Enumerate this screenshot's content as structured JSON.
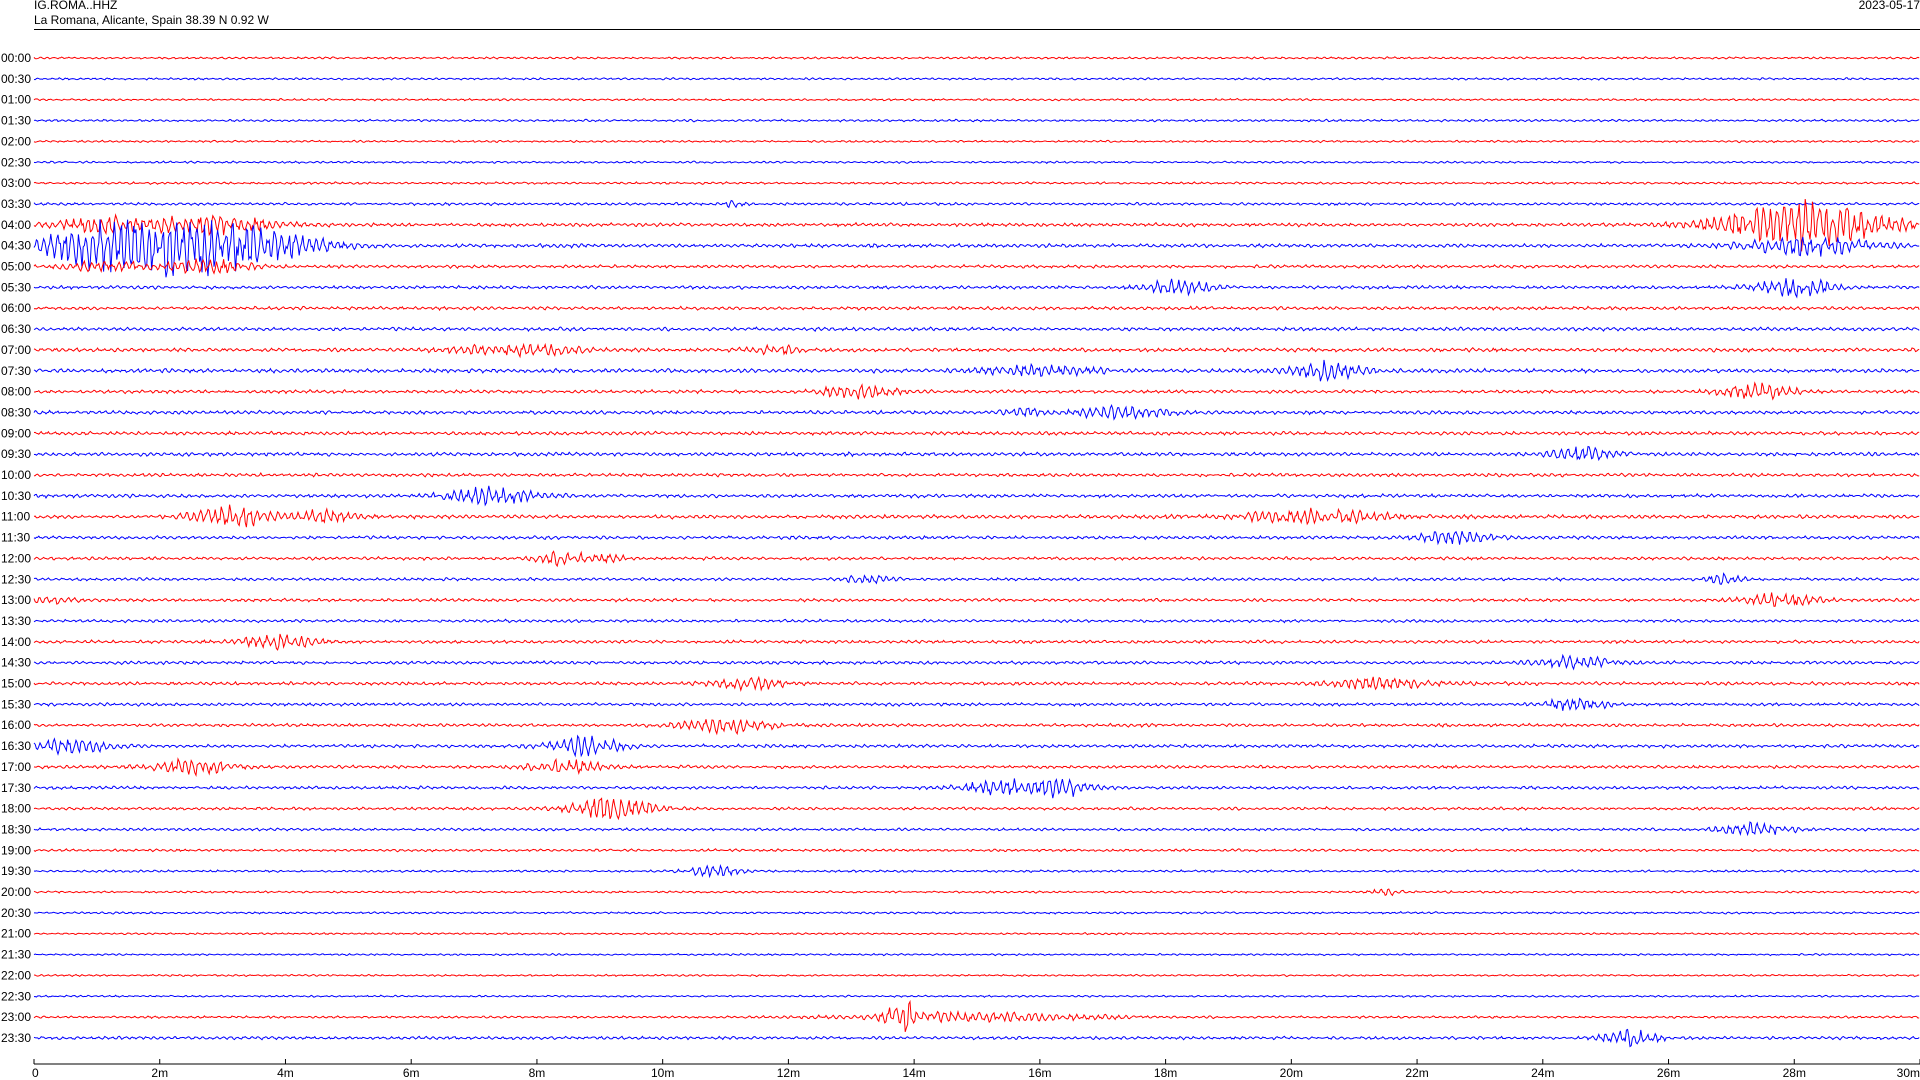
{
  "header": {
    "station": "IG.ROMA..HHZ",
    "location": "La Romana, Alicante, Spain  38.39 N 0.92 W",
    "date": "2023-05-17"
  },
  "chart_data": {
    "type": "line",
    "title": "",
    "xlabel": "",
    "ylabel": "",
    "x_range_minutes": [
      0,
      30
    ],
    "x_tick_labels": [
      "0",
      "2m",
      "4m",
      "6m",
      "8m",
      "10m",
      "12m",
      "14m",
      "16m",
      "18m",
      "20m",
      "22m",
      "24m",
      "26m",
      "28m",
      "30m"
    ],
    "row_labels": [
      "00:00",
      "00:30",
      "01:00",
      "01:30",
      "02:00",
      "02:30",
      "03:00",
      "03:30",
      "04:00",
      "04:30",
      "05:00",
      "05:30",
      "06:00",
      "06:30",
      "07:00",
      "07:30",
      "08:00",
      "08:30",
      "09:00",
      "09:30",
      "10:00",
      "10:30",
      "11:00",
      "11:30",
      "12:00",
      "12:30",
      "13:00",
      "13:30",
      "14:00",
      "14:30",
      "15:00",
      "15:30",
      "16:00",
      "16:30",
      "17:00",
      "17:30",
      "18:00",
      "18:30",
      "19:00",
      "19:30",
      "20:00",
      "20:30",
      "21:00",
      "21:30",
      "22:00",
      "22:30",
      "23:00",
      "23:30"
    ],
    "trace_colors": [
      "#ff0000",
      "#0000ff"
    ],
    "grid": false,
    "legend": "none",
    "noise_amplitude": [
      1.0,
      1.0,
      1.0,
      1.1,
      1.0,
      1.0,
      1.1,
      1.3,
      1.7,
      1.8,
      1.5,
      1.6,
      1.6,
      1.7,
      1.8,
      1.9,
      1.6,
      1.7,
      1.7,
      1.8,
      1.6,
      1.7,
      1.8,
      1.6,
      1.5,
      1.4,
      1.5,
      1.4,
      1.5,
      1.6,
      1.6,
      1.5,
      1.5,
      1.6,
      1.5,
      1.5,
      1.4,
      1.3,
      1.2,
      1.1,
      1.0,
      1.0,
      0.9,
      0.9,
      0.9,
      0.9,
      1.1,
      1.5
    ],
    "events": [
      {
        "row": 7,
        "minute": 11.1,
        "amplitude": 3,
        "duration": 0.3
      },
      {
        "row": 8,
        "minute": 1.1,
        "amplitude": 8,
        "duration": 1.2
      },
      {
        "row": 8,
        "minute": 2.8,
        "amplitude": 10,
        "duration": 1.5
      },
      {
        "row": 8,
        "minute": 28.2,
        "amplitude": 26,
        "duration": 2.0
      },
      {
        "row": 9,
        "minute": 1.1,
        "amplitude": 22,
        "duration": 1.6
      },
      {
        "row": 9,
        "minute": 2.8,
        "amplitude": 28,
        "duration": 2.2
      },
      {
        "row": 9,
        "minute": 28.2,
        "amplitude": 10,
        "duration": 1.5
      },
      {
        "row": 10,
        "minute": 1.1,
        "amplitude": 6,
        "duration": 1.0
      },
      {
        "row": 10,
        "minute": 2.8,
        "amplitude": 7,
        "duration": 1.0
      },
      {
        "row": 11,
        "minute": 18.2,
        "amplitude": 8,
        "duration": 0.8
      },
      {
        "row": 11,
        "minute": 28.0,
        "amplitude": 10,
        "duration": 0.9
      },
      {
        "row": 14,
        "minute": 7.7,
        "amplitude": 6,
        "duration": 1.5
      },
      {
        "row": 14,
        "minute": 11.8,
        "amplitude": 5,
        "duration": 0.6
      },
      {
        "row": 15,
        "minute": 16.0,
        "amplitude": 5,
        "duration": 1.6
      },
      {
        "row": 15,
        "minute": 20.6,
        "amplitude": 10,
        "duration": 0.9
      },
      {
        "row": 16,
        "minute": 13.1,
        "amplitude": 7,
        "duration": 1.0
      },
      {
        "row": 16,
        "minute": 27.4,
        "amplitude": 8,
        "duration": 0.9
      },
      {
        "row": 17,
        "minute": 15.7,
        "amplitude": 7,
        "duration": 0.4
      },
      {
        "row": 17,
        "minute": 17.3,
        "amplitude": 6,
        "duration": 1.2
      },
      {
        "row": 19,
        "minute": 24.6,
        "amplitude": 8,
        "duration": 0.8
      },
      {
        "row": 21,
        "minute": 7.3,
        "amplitude": 9,
        "duration": 1.1
      },
      {
        "row": 22,
        "minute": 3.1,
        "amplitude": 12,
        "duration": 0.9
      },
      {
        "row": 22,
        "minute": 4.6,
        "amplitude": 6,
        "duration": 0.8
      },
      {
        "row": 22,
        "minute": 20.4,
        "amplitude": 7,
        "duration": 1.8
      },
      {
        "row": 23,
        "minute": 22.6,
        "amplitude": 6,
        "duration": 1.0
      },
      {
        "row": 24,
        "minute": 8.4,
        "amplitude": 7,
        "duration": 0.6
      },
      {
        "row": 24,
        "minute": 9.1,
        "amplitude": 4,
        "duration": 0.5
      },
      {
        "row": 25,
        "minute": 13.3,
        "amplitude": 4,
        "duration": 0.6
      },
      {
        "row": 25,
        "minute": 26.9,
        "amplitude": 6,
        "duration": 0.4
      },
      {
        "row": 26,
        "minute": 0.3,
        "amplitude": 4,
        "duration": 0.5
      },
      {
        "row": 26,
        "minute": 27.8,
        "amplitude": 7,
        "duration": 0.9
      },
      {
        "row": 28,
        "minute": 3.9,
        "amplitude": 8,
        "duration": 0.9
      },
      {
        "row": 29,
        "minute": 24.5,
        "amplitude": 6,
        "duration": 1.0
      },
      {
        "row": 30,
        "minute": 11.4,
        "amplitude": 6,
        "duration": 0.9
      },
      {
        "row": 30,
        "minute": 21.4,
        "amplitude": 6,
        "duration": 1.2
      },
      {
        "row": 31,
        "minute": 24.5,
        "amplitude": 6,
        "duration": 0.8
      },
      {
        "row": 32,
        "minute": 11.0,
        "amplitude": 8,
        "duration": 1.1
      },
      {
        "row": 33,
        "minute": 0.6,
        "amplitude": 8,
        "duration": 0.9
      },
      {
        "row": 33,
        "minute": 8.8,
        "amplitude": 10,
        "duration": 0.9
      },
      {
        "row": 34,
        "minute": 2.5,
        "amplitude": 8,
        "duration": 1.0
      },
      {
        "row": 34,
        "minute": 8.5,
        "amplitude": 8,
        "duration": 0.9
      },
      {
        "row": 35,
        "minute": 15.4,
        "amplitude": 8,
        "duration": 1.0
      },
      {
        "row": 35,
        "minute": 16.4,
        "amplitude": 9,
        "duration": 0.7
      },
      {
        "row": 36,
        "minute": 9.2,
        "amplitude": 13,
        "duration": 1.0
      },
      {
        "row": 37,
        "minute": 27.4,
        "amplitude": 7,
        "duration": 0.9
      },
      {
        "row": 39,
        "minute": 10.8,
        "amplitude": 6,
        "duration": 0.6
      },
      {
        "row": 40,
        "minute": 21.5,
        "amplitude": 3,
        "duration": 0.4
      },
      {
        "row": 46,
        "minute": 13.8,
        "amplitude": 18,
        "duration": 0.3
      },
      {
        "row": 46,
        "minute": 14.9,
        "amplitude": 5,
        "duration": 3.0
      },
      {
        "row": 47,
        "minute": 25.4,
        "amplitude": 8,
        "duration": 0.7
      }
    ]
  }
}
